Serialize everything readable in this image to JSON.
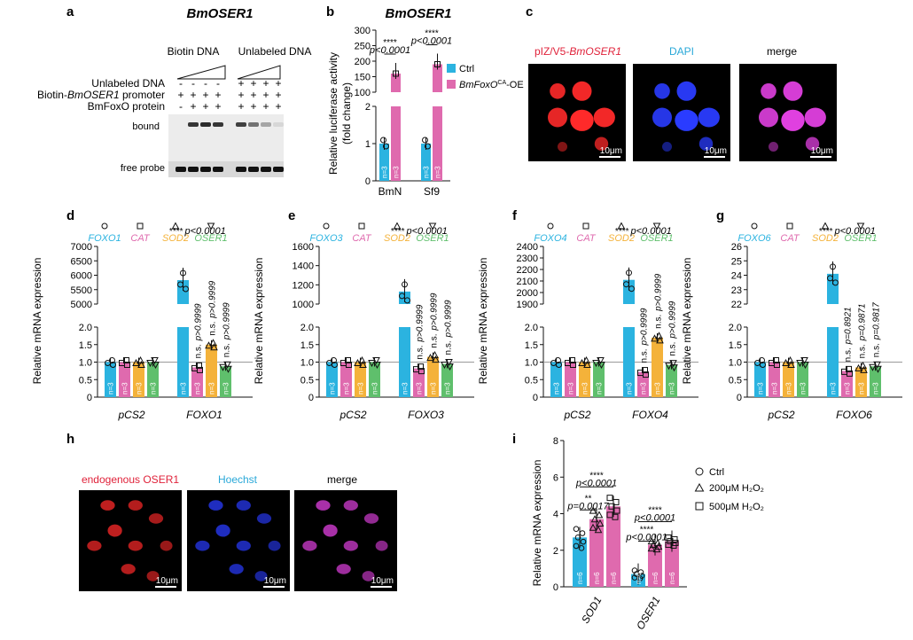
{
  "colors": {
    "blue": "#2bb3e0",
    "pink": "#df6aae",
    "orange": "#f4b23a",
    "green": "#5fbf6c",
    "gray_line": "#9a9a9a",
    "cell_red": "#ff2a2a",
    "cell_blue": "#2a3cff",
    "cell_magenta": "#e040e0",
    "label_red": "#e0223a",
    "label_cyan": "#29a8d8"
  },
  "panel_letters": [
    "a",
    "b",
    "c",
    "d",
    "e",
    "f",
    "g",
    "h",
    "i"
  ],
  "panel_a": {
    "title": "BmOSER1",
    "group1": "Biotin DNA",
    "group2": "Unlabeled DNA",
    "row_labels": [
      "Unlabeled DNA",
      "Biotin-BmOSER1 promoter",
      "BmFoxO protein"
    ],
    "row_label_parts": [
      "Biotin-",
      "BmOSER1",
      " promoter"
    ],
    "rows": [
      [
        "-",
        "-",
        "-",
        "-",
        "+",
        "+",
        "+",
        "+"
      ],
      [
        "+",
        "+",
        "+",
        "+",
        "+",
        "+",
        "+",
        "+"
      ],
      [
        "-",
        "+",
        "+",
        "+",
        "+",
        "+",
        "+",
        "+"
      ]
    ],
    "bound_label": "bound",
    "free_label": "free probe"
  },
  "panel_b": {
    "title": "BmOSER1",
    "ylabel_line1": "Relative luciferase activity",
    "ylabel_line2": "(fold change)",
    "yticks_upper": [
      "100",
      "150",
      "200",
      "250",
      "300"
    ],
    "yticks_lower": [
      "0",
      "1",
      "2"
    ],
    "legend_ctrl": "Ctrl",
    "legend_oe_pre": "BmFoxO",
    "legend_oe_sup": "CA",
    "legend_oe_post": "-OE",
    "stars": "****",
    "pval": "p<0.0001",
    "n_label": "n=3",
    "chart_data": {
      "type": "bar",
      "categories": [
        "BmN",
        "Sf9"
      ],
      "series": [
        {
          "name": "Ctrl",
          "values": [
            1.0,
            1.0
          ]
        },
        {
          "name": "BmFoxOCA-OE",
          "values": [
            160,
            190
          ]
        }
      ]
    }
  },
  "panel_c": {
    "labels": [
      "pIZ/V5-BmOSER1",
      "DAPI",
      "merge"
    ],
    "label_parts": [
      "pIZ/V5-",
      "BmOSER1"
    ],
    "scale": "10μm"
  },
  "qpcr": {
    "ylabel": "Relative mRNA expression",
    "groups_left": "pCS2",
    "n_label": "n=3",
    "stars": "****",
    "main_p": "p<0.0001",
    "ns": "n.s.",
    "panels": [
      {
        "letter": "d",
        "gene": "FOXO1",
        "legend": [
          "FOXO1",
          "CAT",
          "SOD2",
          "OSER1"
        ],
        "yticks_upper": [
          "5000",
          "5500",
          "6000",
          "6500",
          "7000"
        ],
        "yticks_lower": [
          "0",
          "0.5",
          "1.0",
          "1.5",
          "2.0"
        ],
        "ns_p": [
          "p>0.9999",
          "p>0.9999",
          "p>0.9999"
        ],
        "chart_data": {
          "type": "bar",
          "categories": [
            "pCS2",
            "FOXO1"
          ],
          "series": [
            {
              "name": "FOXO1",
              "values": [
                1.0,
                5830
              ]
            },
            {
              "name": "CAT",
              "values": [
                1.0,
                0.85
              ]
            },
            {
              "name": "SOD2",
              "values": [
                1.0,
                1.5
              ]
            },
            {
              "name": "OSER1",
              "values": [
                1.0,
                0.88
              ]
            }
          ]
        }
      },
      {
        "letter": "e",
        "gene": "FOXO3",
        "legend": [
          "FOXO3",
          "CAT",
          "SOD2",
          "OSER1"
        ],
        "yticks_upper": [
          "1000",
          "1200",
          "1400",
          "1600"
        ],
        "yticks_lower": [
          "0",
          "0.5",
          "1.0",
          "1.5",
          "2.0"
        ],
        "ns_p": [
          "p>0.9999",
          "p>0.9999",
          "p>0.9999"
        ],
        "chart_data": {
          "type": "bar",
          "categories": [
            "pCS2",
            "FOXO3"
          ],
          "series": [
            {
              "name": "FOXO3",
              "values": [
                1.0,
                1130
              ]
            },
            {
              "name": "CAT",
              "values": [
                1.0,
                0.82
              ]
            },
            {
              "name": "SOD2",
              "values": [
                1.0,
                1.15
              ]
            },
            {
              "name": "OSER1",
              "values": [
                1.0,
                0.95
              ]
            }
          ]
        }
      },
      {
        "letter": "f",
        "gene": "FOXO4",
        "legend": [
          "FOXO4",
          "CAT",
          "SOD2",
          "OSER1"
        ],
        "yticks_upper": [
          "1900",
          "2000",
          "2100",
          "2200",
          "2300",
          "2400"
        ],
        "yticks_lower": [
          "0",
          "0.5",
          "1.0",
          "1.5",
          "2.0"
        ],
        "ns_p": [
          "p>0.9999",
          "p>0.9999",
          "p>0.9999"
        ],
        "chart_data": {
          "type": "bar",
          "categories": [
            "pCS2",
            "FOXO4"
          ],
          "series": [
            {
              "name": "FOXO4",
              "values": [
                1.0,
                2110
              ]
            },
            {
              "name": "CAT",
              "values": [
                1.0,
                0.72
              ]
            },
            {
              "name": "SOD2",
              "values": [
                1.0,
                1.7
              ]
            },
            {
              "name": "OSER1",
              "values": [
                1.0,
                0.92
              ]
            }
          ]
        }
      },
      {
        "letter": "g",
        "gene": "FOXO6",
        "legend": [
          "FOXO6",
          "CAT",
          "SOD2",
          "OSER1"
        ],
        "yticks_upper": [
          "22",
          "23",
          "24",
          "25",
          "26"
        ],
        "yticks_lower": [
          "0",
          "0.5",
          "1.0",
          "1.5",
          "2.0"
        ],
        "ns_p": [
          "p=0.8921",
          "p=0.9871",
          "p=0.9817"
        ],
        "chart_data": {
          "type": "bar",
          "categories": [
            "pCS2",
            "FOXO6"
          ],
          "series": [
            {
              "name": "FOXO6",
              "values": [
                1.0,
                24.1
              ]
            },
            {
              "name": "CAT",
              "values": [
                1.0,
                0.75
              ]
            },
            {
              "name": "SOD2",
              "values": [
                1.0,
                0.85
              ]
            },
            {
              "name": "OSER1",
              "values": [
                1.0,
                0.88
              ]
            }
          ]
        }
      }
    ]
  },
  "panel_h": {
    "labels": [
      "endogenous OSER1",
      "Hoechst",
      "merge"
    ],
    "scale": "10μm"
  },
  "panel_i": {
    "ylabel": "Relative mRNA expression",
    "yticks": [
      "0",
      "2",
      "4",
      "6",
      "8"
    ],
    "legend": [
      "Ctrl",
      "200μM H₂O₂",
      "500μM H₂O₂"
    ],
    "n_label": "n=6",
    "sod1_stars": [
      "****",
      "**"
    ],
    "sod1_p": [
      "p<0.0001",
      "p=0.0017"
    ],
    "oser1_stars": [
      "****",
      "****"
    ],
    "oser1_p": [
      "p<0.0001",
      "p<0.0001"
    ],
    "chart_data": {
      "type": "bar",
      "categories": [
        "SOD1",
        "OSER1"
      ],
      "series": [
        {
          "name": "Ctrl",
          "values": [
            2.7,
            0.7
          ]
        },
        {
          "name": "200μM H₂O₂",
          "values": [
            3.7,
            2.3
          ]
        },
        {
          "name": "500μM H₂O₂",
          "values": [
            4.4,
            2.5
          ]
        }
      ],
      "ylim": [
        0,
        8
      ]
    }
  }
}
